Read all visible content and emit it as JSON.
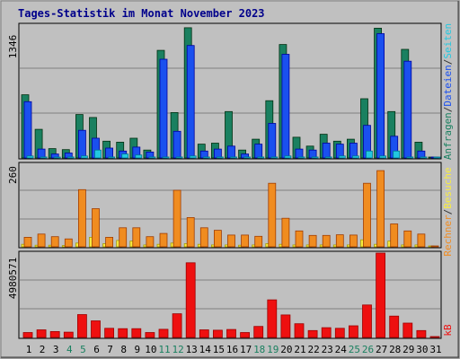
{
  "chart_data": {
    "type": "bar",
    "title": "Tages-Statistik im Monat November 2023",
    "categories": [
      "1",
      "2",
      "3",
      "4",
      "5",
      "6",
      "7",
      "8",
      "9",
      "10",
      "11",
      "12",
      "13",
      "14",
      "15",
      "16",
      "17",
      "18",
      "19",
      "20",
      "21",
      "22",
      "23",
      "24",
      "25",
      "26",
      "27",
      "28",
      "29",
      "30",
      "31"
    ],
    "weekend_days": [
      "4",
      "5",
      "11",
      "12",
      "18",
      "19",
      "25",
      "26"
    ],
    "panels": [
      {
        "id": "requests",
        "ymax_label": "1346",
        "ymax": 1346,
        "series": [
          {
            "name": "Anfragen",
            "color": "#1a8060",
            "values": [
              640,
              290,
              95,
              85,
              440,
              410,
              170,
              160,
              200,
              80,
              1090,
              460,
              1320,
              140,
              150,
              470,
              80,
              190,
              580,
              1150,
              210,
              120,
              240,
              170,
              190,
              600,
              1315,
              470,
              1100,
              160,
              0
            ]
          },
          {
            "name": "Dateien",
            "color": "#1a50ef",
            "values": [
              570,
              90,
              40,
              50,
              280,
              200,
              100,
              70,
              110,
              60,
              1000,
              270,
              1140,
              70,
              90,
              120,
              40,
              140,
              350,
              1050,
              90,
              80,
              150,
              140,
              150,
              330,
              1260,
              220,
              980,
              70,
              0
            ]
          },
          {
            "name": "Seiten",
            "color": "#22c8e0",
            "values": [
              20,
              10,
              0,
              10,
              20,
              80,
              10,
              40,
              30,
              10,
              10,
              10,
              20,
              10,
              10,
              10,
              10,
              10,
              10,
              20,
              10,
              10,
              10,
              20,
              20,
              70,
              20,
              70,
              10,
              10,
              0
            ]
          }
        ],
        "legend": [
          {
            "text": "Anfragen",
            "color": "#1a8060"
          },
          {
            "text": "/",
            "color": "#333333"
          },
          {
            "text": "Dateien",
            "color": "#1a50ef"
          },
          {
            "text": "/",
            "color": "#333333"
          },
          {
            "text": "Seiten",
            "color": "#22c8e0"
          }
        ]
      },
      {
        "id": "visits",
        "ymax_label": "260",
        "ymax": 260,
        "series": [
          {
            "name": "Besuche",
            "color": "#f8ec40",
            "values": [
              8,
              5,
              5,
              4,
              12,
              30,
              10,
              20,
              18,
              6,
              8,
              12,
              10,
              8,
              6,
              6,
              5,
              6,
              10,
              8,
              6,
              6,
              6,
              6,
              6,
              22,
              8,
              18,
              6,
              6,
              0
            ]
          },
          {
            "name": "Rechner",
            "color": "#f08c20",
            "values": [
              30,
              40,
              32,
              25,
              180,
              120,
              30,
              60,
              60,
              32,
              42,
              178,
              92,
              60,
              52,
              37,
              37,
              33,
              200,
              90,
              50,
              36,
              36,
              38,
              37,
              200,
              240,
              72,
              50,
              40,
              0
            ]
          }
        ],
        "legend": [
          {
            "text": "Rechner",
            "color": "#f08c20"
          },
          {
            "text": "/",
            "color": "#333333"
          },
          {
            "text": "Besuche",
            "color": "#f8ec40"
          }
        ]
      },
      {
        "id": "kb",
        "ymax_label": "4980571",
        "ymax": 4980571,
        "series": [
          {
            "name": "kB",
            "color": "#ee1010",
            "values": [
              290000,
              450000,
              350000,
              310000,
              1350000,
              980000,
              540000,
              520000,
              520000,
              290000,
              480000,
              1400000,
              4410000,
              450000,
              430000,
              470000,
              290000,
              650000,
              2220000,
              1330000,
              810000,
              410000,
              580000,
              540000,
              690000,
              1920000,
              4980000,
              1260000,
              850000,
              410000,
              0
            ]
          }
        ],
        "legend": [
          {
            "text": "kB",
            "color": "#ee1010"
          }
        ]
      }
    ]
  }
}
